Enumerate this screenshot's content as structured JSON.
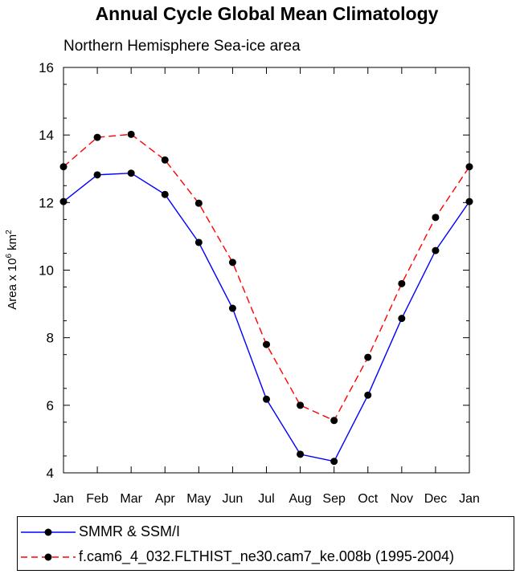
{
  "chart_data": {
    "type": "line",
    "title": "Annual Cycle Global Mean Climatology",
    "subtitle": "Northern Hemisphere Sea-ice area",
    "ylabel_prefix": "Area x 10",
    "ylabel_exp1": "6",
    "ylabel_unit": " km",
    "ylabel_exp2": "2",
    "xlabel": "",
    "categories": [
      "Jan",
      "Feb",
      "Mar",
      "Apr",
      "May",
      "Jun",
      "Jul",
      "Aug",
      "Sep",
      "Oct",
      "Nov",
      "Dec",
      "Jan"
    ],
    "ylim": [
      4,
      16
    ],
    "yticks": [
      4,
      6,
      8,
      10,
      12,
      14,
      16
    ],
    "series": [
      {
        "name": "SMMR & SSM/I",
        "color": "#0000ff",
        "dash": "solid",
        "values": [
          12.03,
          12.82,
          12.87,
          12.24,
          10.82,
          8.87,
          6.18,
          4.55,
          4.34,
          6.3,
          8.57,
          10.58,
          12.03
        ]
      },
      {
        "name": "f.cam6_4_032.FLTHIST_ne30.cam7_ke.008b (1995-2004)",
        "color": "#ff0000",
        "dash": "dashed",
        "values": [
          13.06,
          13.93,
          14.02,
          13.26,
          11.98,
          10.23,
          7.8,
          6.0,
          5.55,
          7.42,
          9.6,
          11.56,
          13.06
        ]
      }
    ]
  }
}
